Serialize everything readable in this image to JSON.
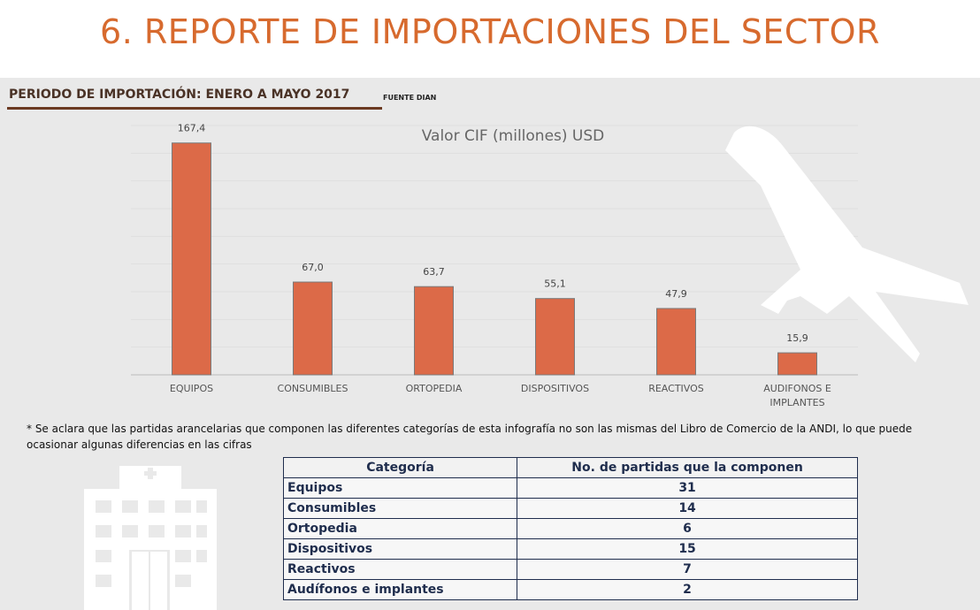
{
  "header": {
    "title": "6. REPORTE DE IMPORTACIONES DEL SECTOR",
    "period": "PERIODO DE IMPORTACIÓN: ENERO A MAYO 2017",
    "source": "FUENTE DIAN"
  },
  "chart_data": {
    "type": "bar",
    "title": "Valor CIF (millones) USD",
    "categories": [
      "EQUIPOS",
      "CONSUMIBLES",
      "ORTOPEDIA",
      "DISPOSITIVOS",
      "REACTIVOS",
      "AUDIFONOS E IMPLANTES"
    ],
    "values": [
      167.4,
      67.0,
      63.7,
      55.1,
      47.9,
      15.9
    ],
    "value_labels": [
      "167,4",
      "67,0",
      "63,7",
      "55,1",
      "47,9",
      "15,9"
    ],
    "color": "#dc6a48",
    "ylim": [
      0,
      180
    ],
    "yticks": [
      0,
      20,
      40,
      60,
      80,
      100,
      120,
      140,
      160,
      180
    ],
    "grid": true
  },
  "note": "* Se aclara que las partidas arancelarias que componen las diferentes categorías de esta infografía no son las mismas del Libro de Comercio de la ANDI, lo que puede ocasionar algunas diferencias en las cifras",
  "table": {
    "columns": [
      "Categoría",
      "No. de partidas que la componen"
    ],
    "rows": [
      [
        "Equipos",
        31
      ],
      [
        "Consumibles",
        14
      ],
      [
        "Ortopedia",
        6
      ],
      [
        "Dispositivos",
        15
      ],
      [
        "Reactivos",
        7
      ],
      [
        "Audífonos e implantes",
        2
      ]
    ]
  }
}
